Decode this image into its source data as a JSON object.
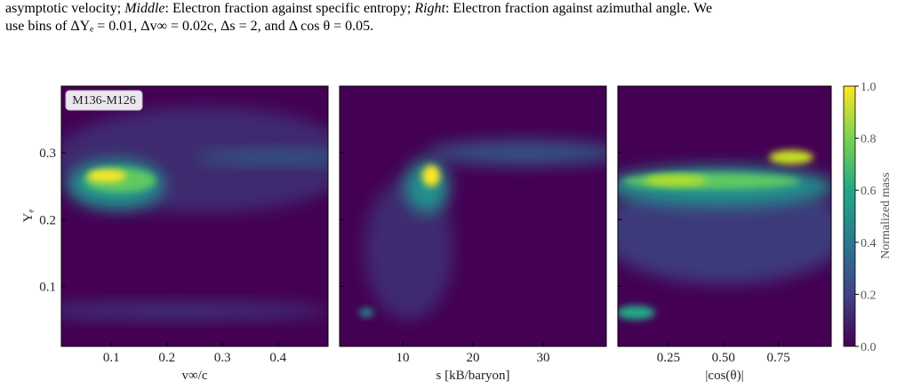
{
  "caption": {
    "line1": [
      "asymptotic velocity; ",
      "Middle",
      ": Electron fraction against specific entropy; ",
      "Right",
      ": Electron fraction against azimuthal angle. We"
    ],
    "line2": "use bins of ΔYₑ = 0.01, Δv∞ = 0.02c, Δs = 2, and Δ cos θ = 0.05."
  },
  "figure": {
    "legend": "M136-M126",
    "ylabel": "Yₑ",
    "ylim": [
      0.01,
      0.4
    ],
    "yticks": [
      0.1,
      0.2,
      0.3
    ],
    "panels": [
      {
        "xlabel": "v∞/c",
        "xlim": [
          0.01,
          0.49
        ],
        "xticks": [
          0.1,
          0.2,
          0.3,
          0.4
        ]
      },
      {
        "xlabel": "s [kB/baryon]",
        "xlim": [
          1,
          39
        ],
        "xticks": [
          10,
          20,
          30
        ]
      },
      {
        "xlabel": "|cos(θ)|",
        "xlim": [
          0.02,
          0.99
        ],
        "xticks": [
          {
            "value": 0.25,
            "label": "0.25"
          },
          {
            "value": 0.5,
            "label": "0.50"
          },
          {
            "value": 0.75,
            "label": "0.75"
          }
        ]
      }
    ],
    "colorbar": {
      "label": "Normalized mass",
      "lim": [
        0,
        1
      ],
      "ticks": [
        {
          "value": 0,
          "label": "0.0"
        },
        {
          "value": 0.2,
          "label": "0.2"
        },
        {
          "value": 0.4,
          "label": "0.4"
        },
        {
          "value": 0.6,
          "label": "0.6"
        },
        {
          "value": 0.8,
          "label": "0.8"
        },
        {
          "value": 1,
          "label": "1.0"
        }
      ]
    }
  }
}
